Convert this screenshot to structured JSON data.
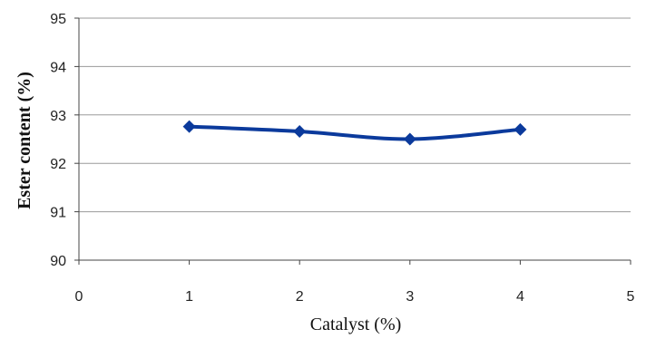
{
  "chart_data": {
    "type": "line",
    "xlabel": "Catalyst (%)",
    "ylabel": "Ester  content  (%)",
    "xlim": [
      0,
      5
    ],
    "ylim": [
      90,
      95
    ],
    "xticks": [
      "0",
      "1",
      "2",
      "3",
      "4",
      "5"
    ],
    "yticks": [
      "90",
      "91",
      "92",
      "93",
      "94",
      "95"
    ],
    "grid": "horizontal",
    "legend": "none",
    "series": [
      {
        "color": "#0b3a9c",
        "marker": "diamond",
        "x": [
          1,
          2,
          3,
          4
        ],
        "y": [
          92.76,
          92.66,
          92.5,
          92.7
        ]
      }
    ]
  }
}
